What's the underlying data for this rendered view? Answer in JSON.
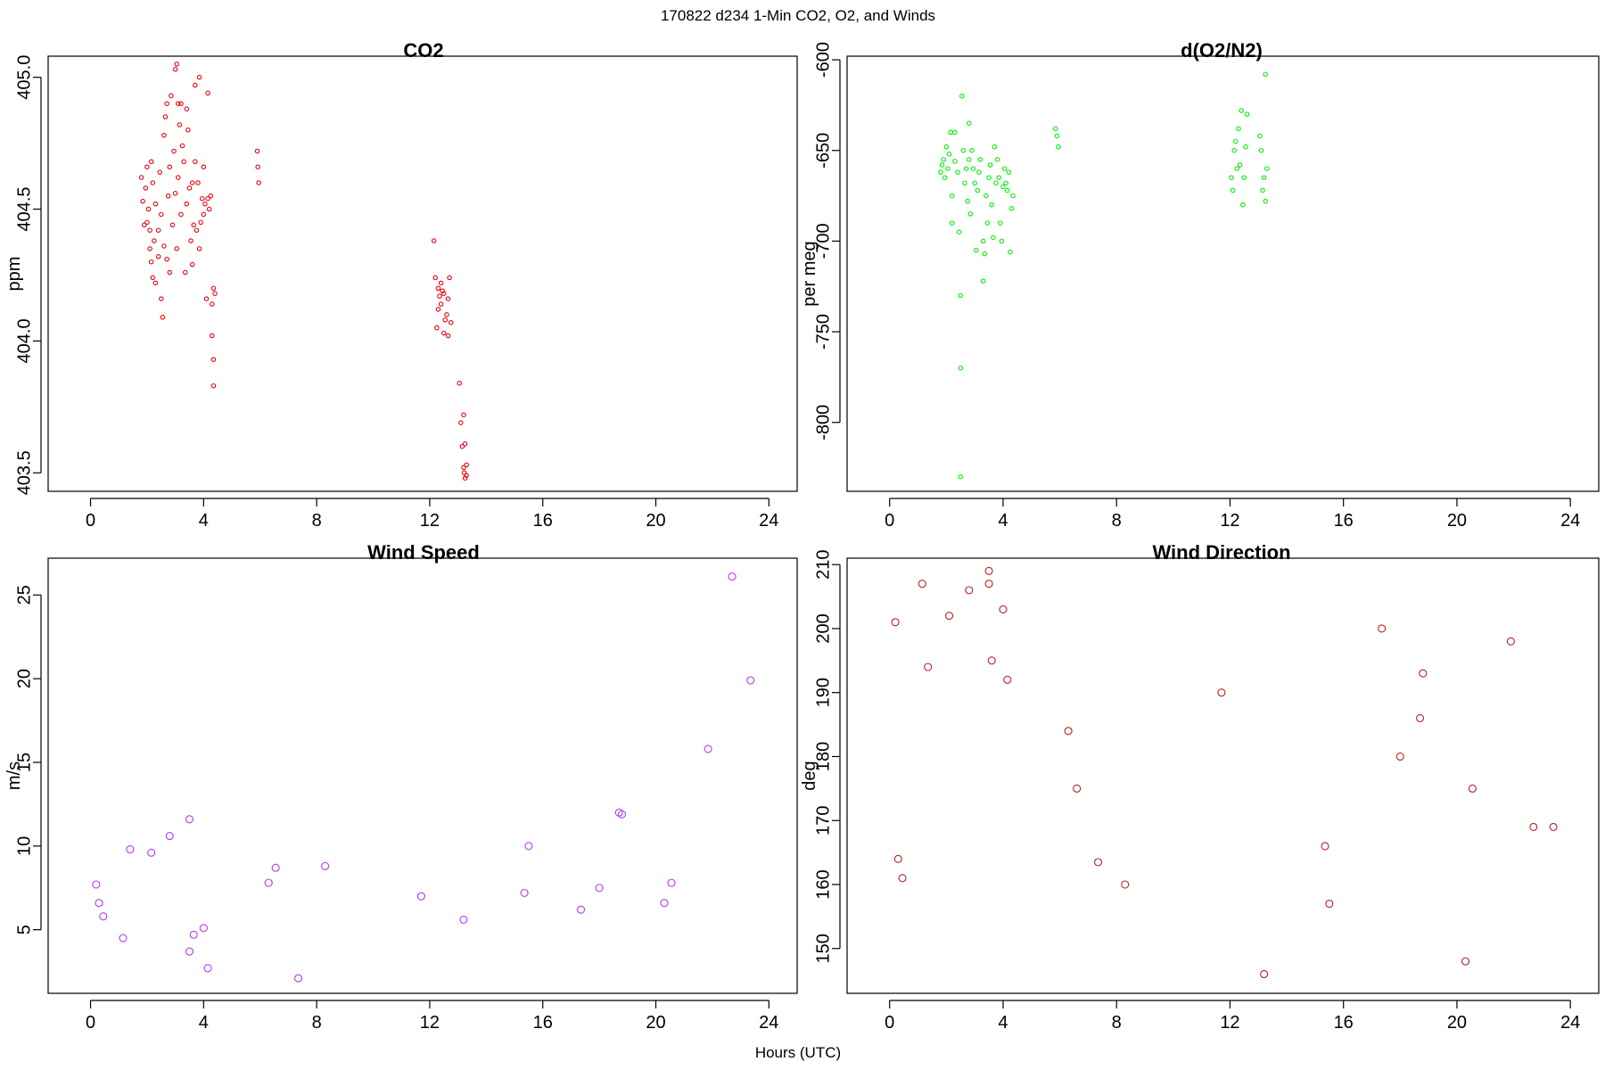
{
  "figure": {
    "title": "170822   d234   1-Min CO2, O2, and Winds",
    "xlabel": "Hours (UTC)"
  },
  "chart_data": [
    {
      "id": "co2",
      "type": "scatter",
      "title": "CO2",
      "ylabel": "ppm",
      "xlim": [
        -1.5,
        25
      ],
      "ylim": [
        403.43,
        405.08
      ],
      "xticks": [
        0,
        4,
        8,
        12,
        16,
        20,
        24
      ],
      "yticks": [
        403.5,
        404.0,
        404.5,
        405.0
      ],
      "ytick_labels": [
        "403.5",
        "404.0",
        "404.5",
        "405.0"
      ],
      "marker_color": "#e8000b",
      "marker_r": 2.2,
      "points": [
        [
          1.8,
          404.62
        ],
        [
          1.85,
          404.53
        ],
        [
          1.9,
          404.44
        ],
        [
          1.95,
          404.58
        ],
        [
          2.0,
          404.66
        ],
        [
          2.0,
          404.45
        ],
        [
          2.05,
          404.5
        ],
        [
          2.1,
          404.42
        ],
        [
          2.1,
          404.35
        ],
        [
          2.15,
          404.68
        ],
        [
          2.15,
          404.3
        ],
        [
          2.2,
          404.6
        ],
        [
          2.2,
          404.24
        ],
        [
          2.25,
          404.38
        ],
        [
          2.3,
          404.52
        ],
        [
          2.3,
          404.22
        ],
        [
          2.4,
          404.32
        ],
        [
          2.4,
          404.42
        ],
        [
          2.45,
          404.64
        ],
        [
          2.5,
          404.16
        ],
        [
          2.5,
          404.48
        ],
        [
          2.55,
          404.09
        ],
        [
          2.6,
          404.78
        ],
        [
          2.6,
          404.36
        ],
        [
          2.65,
          404.85
        ],
        [
          2.7,
          404.9
        ],
        [
          2.7,
          404.31
        ],
        [
          2.75,
          404.55
        ],
        [
          2.8,
          404.26
        ],
        [
          2.8,
          404.66
        ],
        [
          2.85,
          404.93
        ],
        [
          2.9,
          404.44
        ],
        [
          2.95,
          404.72
        ],
        [
          3.0,
          405.03
        ],
        [
          3.0,
          404.56
        ],
        [
          3.05,
          405.05
        ],
        [
          3.05,
          404.35
        ],
        [
          3.1,
          404.9
        ],
        [
          3.1,
          404.62
        ],
        [
          3.15,
          404.82
        ],
        [
          3.2,
          404.9
        ],
        [
          3.2,
          404.48
        ],
        [
          3.25,
          404.74
        ],
        [
          3.3,
          404.68
        ],
        [
          3.35,
          404.26
        ],
        [
          3.4,
          404.88
        ],
        [
          3.4,
          404.52
        ],
        [
          3.45,
          404.8
        ],
        [
          3.5,
          404.58
        ],
        [
          3.55,
          404.38
        ],
        [
          3.6,
          404.6
        ],
        [
          3.6,
          404.29
        ],
        [
          3.65,
          404.44
        ],
        [
          3.7,
          404.97
        ],
        [
          3.7,
          404.68
        ],
        [
          3.75,
          404.42
        ],
        [
          3.8,
          404.6
        ],
        [
          3.85,
          404.35
        ],
        [
          3.85,
          405.0
        ],
        [
          3.9,
          404.45
        ],
        [
          3.95,
          404.54
        ],
        [
          4.0,
          404.66
        ],
        [
          4.0,
          404.48
        ],
        [
          4.05,
          404.52
        ],
        [
          4.1,
          404.16
        ],
        [
          4.15,
          404.94
        ],
        [
          4.15,
          404.54
        ],
        [
          4.2,
          404.5
        ],
        [
          4.25,
          404.55
        ],
        [
          4.3,
          404.14
        ],
        [
          4.3,
          404.02
        ],
        [
          4.35,
          404.2
        ],
        [
          4.35,
          403.93
        ],
        [
          4.35,
          403.83
        ],
        [
          4.4,
          404.18
        ],
        [
          5.9,
          404.72
        ],
        [
          5.92,
          404.66
        ],
        [
          5.95,
          404.6
        ],
        [
          12.15,
          404.38
        ],
        [
          12.2,
          404.24
        ],
        [
          12.25,
          404.05
        ],
        [
          12.3,
          404.12
        ],
        [
          12.3,
          404.2
        ],
        [
          12.35,
          404.17
        ],
        [
          12.4,
          404.14
        ],
        [
          12.4,
          404.22
        ],
        [
          12.45,
          404.19
        ],
        [
          12.5,
          404.18
        ],
        [
          12.5,
          404.03
        ],
        [
          12.55,
          404.08
        ],
        [
          12.6,
          404.1
        ],
        [
          12.65,
          404.16
        ],
        [
          12.65,
          404.02
        ],
        [
          12.7,
          404.24
        ],
        [
          12.75,
          404.07
        ],
        [
          13.05,
          403.84
        ],
        [
          13.1,
          403.69
        ],
        [
          13.15,
          403.6
        ],
        [
          13.2,
          403.72
        ],
        [
          13.2,
          403.52
        ],
        [
          13.22,
          403.5
        ],
        [
          13.25,
          403.48
        ],
        [
          13.25,
          403.61
        ],
        [
          13.3,
          403.53
        ],
        [
          13.3,
          403.49
        ]
      ]
    },
    {
      "id": "o2",
      "type": "scatter",
      "title": "d(O2/N2)",
      "ylabel": "per meg",
      "xlim": [
        -1.5,
        25
      ],
      "ylim": [
        -838,
        -598
      ],
      "xticks": [
        0,
        4,
        8,
        12,
        16,
        20,
        24
      ],
      "yticks": [
        -800,
        -750,
        -700,
        -650,
        -600
      ],
      "ytick_labels": [
        "-800",
        "-750",
        "-700",
        "-650",
        "-600"
      ],
      "marker_color": "#00ee00",
      "marker_r": 2.2,
      "points": [
        [
          1.8,
          -662
        ],
        [
          1.85,
          -658
        ],
        [
          1.9,
          -655
        ],
        [
          1.95,
          -665
        ],
        [
          2.0,
          -648
        ],
        [
          2.05,
          -660
        ],
        [
          2.1,
          -652
        ],
        [
          2.15,
          -640
        ],
        [
          2.2,
          -675
        ],
        [
          2.2,
          -690
        ],
        [
          2.3,
          -656
        ],
        [
          2.3,
          -640
        ],
        [
          2.4,
          -662
        ],
        [
          2.45,
          -695
        ],
        [
          2.5,
          -730
        ],
        [
          2.5,
          -770
        ],
        [
          2.5,
          -830
        ],
        [
          2.55,
          -620
        ],
        [
          2.6,
          -650
        ],
        [
          2.65,
          -668
        ],
        [
          2.7,
          -660
        ],
        [
          2.75,
          -678
        ],
        [
          2.8,
          -655
        ],
        [
          2.8,
          -635
        ],
        [
          2.85,
          -685
        ],
        [
          2.9,
          -650
        ],
        [
          2.95,
          -660
        ],
        [
          3.0,
          -668
        ],
        [
          3.05,
          -705
        ],
        [
          3.1,
          -672
        ],
        [
          3.15,
          -662
        ],
        [
          3.2,
          -655
        ],
        [
          3.3,
          -700
        ],
        [
          3.3,
          -722
        ],
        [
          3.35,
          -707
        ],
        [
          3.4,
          -675
        ],
        [
          3.45,
          -690
        ],
        [
          3.5,
          -665
        ],
        [
          3.55,
          -658
        ],
        [
          3.6,
          -680
        ],
        [
          3.65,
          -698
        ],
        [
          3.7,
          -648
        ],
        [
          3.75,
          -668
        ],
        [
          3.8,
          -655
        ],
        [
          3.85,
          -665
        ],
        [
          3.9,
          -690
        ],
        [
          3.95,
          -700
        ],
        [
          4.0,
          -670
        ],
        [
          4.05,
          -660
        ],
        [
          4.1,
          -668
        ],
        [
          4.15,
          -672
        ],
        [
          4.2,
          -662
        ],
        [
          4.25,
          -706
        ],
        [
          4.3,
          -682
        ],
        [
          4.35,
          -675
        ],
        [
          5.85,
          -638
        ],
        [
          5.9,
          -642
        ],
        [
          5.95,
          -648
        ],
        [
          12.05,
          -665
        ],
        [
          12.1,
          -672
        ],
        [
          12.15,
          -650
        ],
        [
          12.2,
          -645
        ],
        [
          12.25,
          -660
        ],
        [
          12.3,
          -638
        ],
        [
          12.35,
          -658
        ],
        [
          12.4,
          -628
        ],
        [
          12.45,
          -680
        ],
        [
          12.5,
          -665
        ],
        [
          12.55,
          -648
        ],
        [
          12.6,
          -630
        ],
        [
          13.05,
          -642
        ],
        [
          13.1,
          -650
        ],
        [
          13.15,
          -672
        ],
        [
          13.2,
          -665
        ],
        [
          13.25,
          -678
        ],
        [
          13.25,
          -608
        ],
        [
          13.3,
          -660
        ]
      ]
    },
    {
      "id": "ws",
      "type": "scatter",
      "title": "Wind Speed",
      "ylabel": "m/s",
      "xlim": [
        -1.5,
        25
      ],
      "ylim": [
        1.2,
        27.2
      ],
      "xticks": [
        0,
        4,
        8,
        12,
        16,
        20,
        24
      ],
      "yticks": [
        5,
        10,
        15,
        20,
        25
      ],
      "ytick_labels": [
        "5",
        "10",
        "15",
        "20",
        "25"
      ],
      "marker_color": "#b23aee",
      "marker_r": 4,
      "points": [
        [
          0.2,
          7.7
        ],
        [
          0.3,
          6.6
        ],
        [
          0.45,
          5.8
        ],
        [
          1.15,
          4.5
        ],
        [
          1.4,
          9.8
        ],
        [
          2.15,
          9.6
        ],
        [
          2.8,
          10.6
        ],
        [
          3.5,
          11.6
        ],
        [
          3.5,
          3.7
        ],
        [
          3.65,
          4.7
        ],
        [
          4.0,
          5.1
        ],
        [
          4.15,
          2.7
        ],
        [
          6.3,
          7.8
        ],
        [
          6.55,
          8.7
        ],
        [
          7.35,
          2.1
        ],
        [
          8.3,
          8.8
        ],
        [
          11.7,
          7.0
        ],
        [
          13.2,
          5.6
        ],
        [
          15.35,
          7.2
        ],
        [
          15.5,
          10.0
        ],
        [
          17.35,
          6.2
        ],
        [
          18.0,
          7.5
        ],
        [
          18.7,
          12.0
        ],
        [
          18.8,
          11.9
        ],
        [
          20.3,
          6.6
        ],
        [
          20.55,
          7.8
        ],
        [
          21.85,
          15.8
        ],
        [
          22.7,
          26.1
        ],
        [
          23.35,
          19.9
        ]
      ]
    },
    {
      "id": "wd",
      "type": "scatter",
      "title": "Wind Direction",
      "ylabel": "deg",
      "xlim": [
        -1.5,
        25
      ],
      "ylim": [
        143,
        211
      ],
      "xticks": [
        0,
        4,
        8,
        12,
        16,
        20,
        24
      ],
      "yticks": [
        150,
        160,
        170,
        180,
        190,
        200,
        210
      ],
      "ytick_labels": [
        "150",
        "160",
        "170",
        "180",
        "190",
        "200",
        "210"
      ],
      "marker_color": "#b22222",
      "marker_r": 4,
      "points": [
        [
          0.2,
          201
        ],
        [
          0.3,
          164
        ],
        [
          0.45,
          161
        ],
        [
          1.15,
          207
        ],
        [
          1.35,
          194
        ],
        [
          2.1,
          202
        ],
        [
          2.8,
          206
        ],
        [
          3.5,
          209
        ],
        [
          3.5,
          207
        ],
        [
          3.6,
          195
        ],
        [
          4.0,
          203
        ],
        [
          4.15,
          192
        ],
        [
          6.3,
          184
        ],
        [
          6.6,
          175
        ],
        [
          7.35,
          163.5
        ],
        [
          8.3,
          160
        ],
        [
          11.7,
          190
        ],
        [
          13.2,
          146
        ],
        [
          15.35,
          166
        ],
        [
          15.5,
          157
        ],
        [
          17.35,
          200
        ],
        [
          18.0,
          180
        ],
        [
          18.7,
          186
        ],
        [
          18.8,
          193
        ],
        [
          20.3,
          148
        ],
        [
          20.55,
          175
        ],
        [
          21.9,
          198
        ],
        [
          22.7,
          169
        ],
        [
          23.4,
          169
        ]
      ]
    }
  ]
}
